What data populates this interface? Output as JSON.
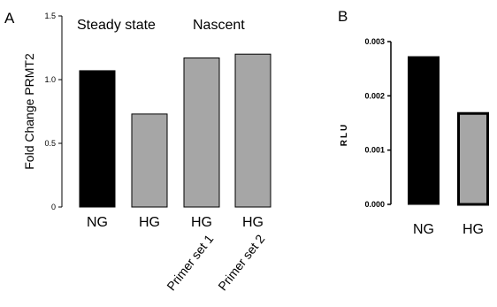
{
  "colors": {
    "black_bar": "#000000",
    "gray_bar": "#a6a6a6",
    "axis": "#000000"
  },
  "chart_data": [
    {
      "panel": "A",
      "type": "bar",
      "ylabel": "Fold Change PRMT2",
      "ylim": [
        0,
        1.5
      ],
      "yticks": [
        {
          "value": 0,
          "label": "0"
        },
        {
          "value": 0.5,
          "label": "0.5"
        },
        {
          "value": 1.0,
          "label": "1.0"
        },
        {
          "value": 1.5,
          "label": "1.5"
        }
      ],
      "group_labels": [
        "Steady state",
        "Nascent"
      ],
      "categories": [
        "NG",
        "HG",
        "HG",
        "HG"
      ],
      "sublabels": [
        "",
        "",
        "Primer set 1",
        "Primer set 2"
      ],
      "values": [
        1.07,
        0.73,
        1.17,
        1.2
      ],
      "colors": [
        "#000000",
        "#a6a6a6",
        "#a6a6a6",
        "#a6a6a6"
      ],
      "grid": false,
      "legend": "none"
    },
    {
      "panel": "B",
      "type": "bar",
      "ylabel": "RLU",
      "ylim": [
        0,
        0.003
      ],
      "yticks": [
        {
          "value": 0,
          "label": "0.000"
        },
        {
          "value": 0.001,
          "label": "0.001"
        },
        {
          "value": 0.002,
          "label": "0.002"
        },
        {
          "value": 0.003,
          "label": "0.003"
        }
      ],
      "categories": [
        "NG",
        "HG"
      ],
      "values": [
        0.00273,
        0.0017
      ],
      "colors": [
        "#000000",
        "#a6a6a6"
      ],
      "grid": false,
      "legend": "none"
    }
  ]
}
